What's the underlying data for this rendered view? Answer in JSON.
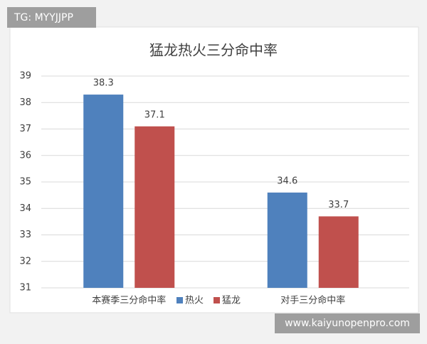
{
  "chart_data": {
    "type": "bar",
    "title": "猛龙热火三分命中率",
    "categories": [
      "本赛季三分命中率",
      "对手三分命中率"
    ],
    "series": [
      {
        "name": "热火",
        "color": "#4f81bd",
        "values": [
          38.3,
          34.6
        ]
      },
      {
        "name": "猛龙",
        "color": "#c0504d",
        "values": [
          37.1,
          33.7
        ]
      }
    ],
    "ylim": [
      31,
      39
    ],
    "yticks": [
      31,
      32,
      33,
      34,
      35,
      36,
      37,
      38,
      39
    ],
    "grid": true,
    "legend": "bottom"
  },
  "overlays": {
    "tag": "TG: MYYJJPP",
    "site": "www.kaiyunopenpro.com"
  }
}
